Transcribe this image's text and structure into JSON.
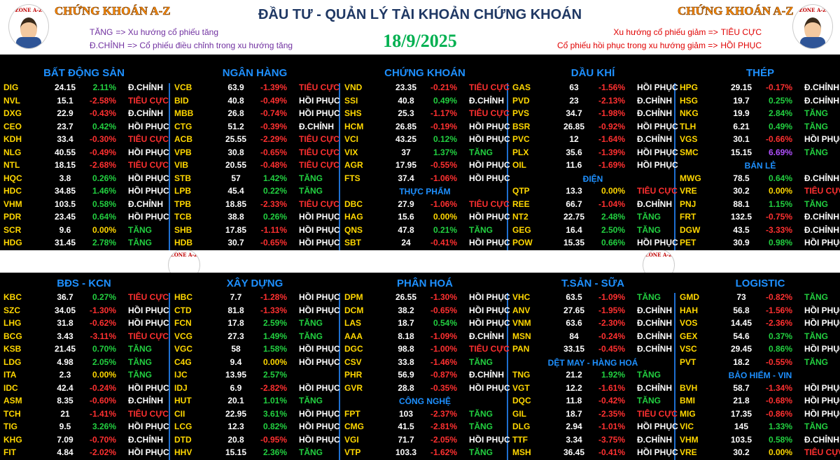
{
  "header": {
    "brand_left": "CHỨNG KHOÁN A-Z",
    "brand_right": "CHỨNG KHOÁN A-Z",
    "title": "ĐẦU TƯ - QUẢN LÝ TÀI KHOẢN CHỨNG KHOÁN",
    "date": "18/9/2025",
    "logo_text": "ZONE A-Z",
    "legend_left": [
      {
        "key": "TĂNG",
        "text": "=> Xu hướng cổ phiếu tăng"
      },
      {
        "key": "Đ.CHỈNH",
        "text": "=> Cổ phiếu điều chỉnh trong xu hướng tăng"
      }
    ],
    "legend_right": [
      {
        "text": "Xu hướng cổ phiếu giảm =>",
        "key": "TIÊU CỰC"
      },
      {
        "text": "Cổ phiếu hồi phục trong xu hướng giảm =>",
        "key": "HỒI PHỤC"
      }
    ]
  },
  "blocks": [
    {
      "columns": [
        [
          {
            "title": "BẤT ĐỘNG SẢN",
            "rows": [
              [
                "DIG",
                "24.15",
                "2.11%",
                "Đ.CHỈNH"
              ],
              [
                "NVL",
                "15.1",
                "-2.58%",
                "TIÊU CỰC"
              ],
              [
                "DXG",
                "22.9",
                "-0.43%",
                "Đ.CHỈNH"
              ],
              [
                "CEO",
                "23.7",
                "0.42%",
                "HỒI PHỤC"
              ],
              [
                "KDH",
                "33.4",
                "-0.30%",
                "TIÊU CỰC"
              ],
              [
                "NLG",
                "40.55",
                "-0.49%",
                "HỒI PHỤC"
              ],
              [
                "NTL",
                "18.15",
                "-2.68%",
                "TIÊU CỰC"
              ],
              [
                "HQC",
                "3.8",
                "0.26%",
                "HỒI PHỤC"
              ],
              [
                "HDC",
                "34.85",
                "1.46%",
                "HỒI PHỤC"
              ],
              [
                "VHM",
                "103.5",
                "0.58%",
                "Đ.CHỈNH"
              ],
              [
                "PDR",
                "23.45",
                "0.64%",
                "HỒI PHỤC"
              ],
              [
                "SCR",
                "9.6",
                "0.00%",
                "TĂNG"
              ],
              [
                "HDG",
                "31.45",
                "2.78%",
                "TĂNG"
              ]
            ]
          }
        ],
        [
          {
            "title": "NGÂN HÀNG",
            "rows": [
              [
                "VCB",
                "63.9",
                "-1.39%",
                "TIÊU CỰC"
              ],
              [
                "BID",
                "40.8",
                "-0.49%",
                "HỒI PHỤC"
              ],
              [
                "MBB",
                "26.8",
                "-0.74%",
                "HỒI PHỤC"
              ],
              [
                "CTG",
                "51.2",
                "-0.39%",
                "Đ.CHỈNH"
              ],
              [
                "ACB",
                "25.55",
                "-2.29%",
                "TIÊU CỰC"
              ],
              [
                "VPB",
                "30.8",
                "-0.65%",
                "TIÊU CỰC"
              ],
              [
                "VIB",
                "20.55",
                "-0.48%",
                "TIÊU CỰC"
              ],
              [
                "STB",
                "57",
                "1.42%",
                "TĂNG"
              ],
              [
                "LPB",
                "45.4",
                "0.22%",
                "TĂNG"
              ],
              [
                "TPB",
                "18.85",
                "-2.33%",
                "TIÊU CỰC"
              ],
              [
                "TCB",
                "38.8",
                "0.26%",
                "HỒI PHỤC"
              ],
              [
                "SHB",
                "17.85",
                "-1.11%",
                "HỒI PHỤC"
              ],
              [
                "HDB",
                "30.7",
                "-0.65%",
                "HỒI PHỤC"
              ]
            ]
          }
        ],
        [
          {
            "title": "CHỨNG KHOÁN",
            "rows": [
              [
                "VND",
                "23.35",
                "-0.21%",
                "TIÊU CỰC"
              ],
              [
                "SSI",
                "40.8",
                "0.49%",
                "Đ.CHỈNH"
              ],
              [
                "SHS",
                "25.3",
                "-1.17%",
                "TIÊU CỰC"
              ],
              [
                "HCM",
                "26.85",
                "-0.19%",
                "HỒI PHỤC"
              ],
              [
                "VCI",
                "43.25",
                "0.12%",
                "HỒI PHỤC"
              ],
              [
                "VIX",
                "37",
                "1.37%",
                "TĂNG"
              ],
              [
                "AGR",
                "17.95",
                "-0.55%",
                "HỒI PHỤC"
              ],
              [
                "FTS",
                "37.4",
                "-1.06%",
                "HỒI PHỤC"
              ]
            ]
          },
          {
            "title": "THỰC PHẨM",
            "rows": [
              [
                "DBC",
                "27.9",
                "-1.06%",
                "TIÊU CỰC"
              ],
              [
                "HAG",
                "15.6",
                "0.00%",
                "HỒI PHỤC"
              ],
              [
                "QNS",
                "47.8",
                "0.21%",
                "TĂNG"
              ],
              [
                "SBT",
                "24",
                "-0.41%",
                "HỒI PHỤC"
              ]
            ]
          }
        ],
        [
          {
            "title": "DẦU KHÍ",
            "rows": [
              [
                "GAS",
                "63",
                "-1.56%",
                "HỒI PHỤC"
              ],
              [
                "PVD",
                "23",
                "-2.13%",
                "Đ.CHỈNH"
              ],
              [
                "PVS",
                "34.7",
                "-1.98%",
                "Đ.CHỈNH"
              ],
              [
                "BSR",
                "26.85",
                "-0.92%",
                "HỒI PHỤC"
              ],
              [
                "PVC",
                "12",
                "-1.64%",
                "Đ.CHỈNH"
              ],
              [
                "PLX",
                "35.6",
                "-1.39%",
                "HỒI PHỤC"
              ],
              [
                "OIL",
                "11.6",
                "-1.69%",
                "HỒI PHỤC"
              ]
            ]
          },
          {
            "title": "ĐIỆN",
            "rows": [
              [
                "QTP",
                "13.3",
                "0.00%",
                "TIÊU CỰC"
              ],
              [
                "REE",
                "66.7",
                "-1.04%",
                "Đ.CHỈNH"
              ],
              [
                "NT2",
                "22.75",
                "2.48%",
                "TĂNG"
              ],
              [
                "GEG",
                "16.4",
                "2.50%",
                "TĂNG"
              ],
              [
                "POW",
                "15.35",
                "0.66%",
                "HỒI PHỤC"
              ]
            ]
          }
        ],
        [
          {
            "title": "THÉP",
            "rows": [
              [
                "HPG",
                "29.15",
                "-0.17%",
                "Đ.CHỈNH"
              ],
              [
                "HSG",
                "19.7",
                "0.25%",
                "Đ.CHỈNH"
              ],
              [
                "NKG",
                "19.9",
                "2.84%",
                "TĂNG"
              ],
              [
                "TLH",
                "6.21",
                "0.49%",
                "TĂNG"
              ],
              [
                "VGS",
                "30.1",
                "-0.66%",
                "HỒI PHỤC"
              ],
              [
                "SMC",
                "15.15",
                "6.69%",
                "TĂNG"
              ]
            ]
          },
          {
            "title": "BÁN LẺ",
            "rows": [
              [
                "MWG",
                "78.5",
                "0.64%",
                "Đ.CHỈNH"
              ],
              [
                "VRE",
                "30.2",
                "0.00%",
                "TIÊU CỰC"
              ],
              [
                "PNJ",
                "88.1",
                "1.15%",
                "TĂNG"
              ],
              [
                "FRT",
                "132.5",
                "-0.75%",
                "Đ.CHỈNH"
              ],
              [
                "DGW",
                "43.5",
                "-3.33%",
                "Đ.CHỈNH"
              ],
              [
                "PET",
                "30.9",
                "0.98%",
                "HỒI PHỤC"
              ]
            ]
          }
        ]
      ]
    },
    {
      "columns": [
        [
          {
            "title": "BĐS - KCN",
            "rows": [
              [
                "KBC",
                "36.7",
                "0.27%",
                "TIÊU CỰC"
              ],
              [
                "SZC",
                "34.05",
                "-1.30%",
                "HỒI PHỤC"
              ],
              [
                "LHG",
                "31.8",
                "-0.62%",
                "HỒI PHỤC"
              ],
              [
                "BCG",
                "3.43",
                "-3.11%",
                "TIÊU CỰC"
              ],
              [
                "KSB",
                "21.45",
                "0.70%",
                "TĂNG"
              ],
              [
                "LDG",
                "4.98",
                "2.05%",
                "TĂNG"
              ],
              [
                "ITA",
                "2.3",
                "0.00%",
                "TĂNG"
              ],
              [
                "IDC",
                "42.4",
                "-0.24%",
                "HỒI PHỤC"
              ],
              [
                "ASM",
                "8.35",
                "-0.60%",
                "Đ.CHỈNH"
              ],
              [
                "TCH",
                "21",
                "-1.41%",
                "TIÊU CỰC"
              ],
              [
                "TIG",
                "9.5",
                "3.26%",
                "HỒI PHỤC"
              ],
              [
                "KHG",
                "7.09",
                "-0.70%",
                "Đ.CHỈNH"
              ],
              [
                "FIT",
                "4.84",
                "-2.02%",
                "HỒI PHỤC"
              ]
            ]
          }
        ],
        [
          {
            "title": "XÂY DỰNG",
            "rows": [
              [
                "HBC",
                "7.7",
                "-1.28%",
                "HỒI PHỤC"
              ],
              [
                "CTD",
                "81.8",
                "-1.33%",
                "HỒI PHỤC"
              ],
              [
                "FCN",
                "17.8",
                "2.59%",
                "TĂNG"
              ],
              [
                "VCG",
                "27.3",
                "1.49%",
                "TĂNG"
              ],
              [
                "VGC",
                "58",
                "1.58%",
                "HỒI PHỤC"
              ],
              [
                "C4G",
                "9.4",
                "0.00%",
                "HỒI PHỤC"
              ],
              [
                "IJC",
                "13.95",
                "2.57%"
              ],
              [
                "IDJ",
                "6.9",
                "-2.82%",
                "HỒI PHỤC"
              ],
              [
                "HUT",
                "20.1",
                "1.01%",
                "TĂNG"
              ],
              [
                "CII",
                "22.95",
                "3.61%",
                "HỒI PHỤC"
              ],
              [
                "LCG",
                "12.3",
                "0.82%",
                "HỒI PHỤC"
              ],
              [
                "DTD",
                "20.8",
                "-0.95%",
                "HỒI PHỤC"
              ],
              [
                "HHV",
                "15.15",
                "2.36%",
                "TĂNG"
              ]
            ]
          }
        ],
        [
          {
            "title": "PHÂN HOÁ",
            "rows": [
              [
                "DPM",
                "26.55",
                "-1.30%",
                "HỒI PHỤC"
              ],
              [
                "DCM",
                "38.2",
                "-0.65%",
                "HỒI PHỤC"
              ],
              [
                "LAS",
                "18.7",
                "0.54%",
                "HỒI PHỤC"
              ],
              [
                "AAA",
                "8.18",
                "-1.09%",
                "Đ.CHỈNH"
              ],
              [
                "DGC",
                "98.8",
                "-1.00%",
                "TIÊU CỰC"
              ],
              [
                "CSV",
                "33.8",
                "-1.46%",
                "TĂNG"
              ],
              [
                "PHR",
                "56.9",
                "-0.87%",
                "Đ.CHỈNH"
              ],
              [
                "GVR",
                "28.8",
                "-0.35%",
                "HỒI PHỤC"
              ]
            ]
          },
          {
            "title": "CÔNG NGHỆ",
            "rows": [
              [
                "FPT",
                "103",
                "-2.37%",
                "TĂNG"
              ],
              [
                "CMG",
                "41.5",
                "-2.81%",
                "TĂNG"
              ],
              [
                "VGI",
                "71.7",
                "-2.05%",
                "HỒI PHỤC"
              ],
              [
                "VTP",
                "103.3",
                "-1.62%",
                "TĂNG"
              ]
            ]
          }
        ],
        [
          {
            "title": "T.SẢN - SỮA",
            "rows": [
              [
                "VHC",
                "63.5",
                "-1.09%",
                "TĂNG"
              ],
              [
                "ANV",
                "27.65",
                "-1.95%",
                "Đ.CHỈNH"
              ],
              [
                "VNM",
                "63.6",
                "-2.30%",
                "Đ.CHỈNH"
              ],
              [
                "MSN",
                "84",
                "-0.24%",
                "Đ.CHỈNH"
              ],
              [
                "PAN",
                "33.15",
                "-0.45%",
                "Đ.CHỈNH"
              ]
            ]
          },
          {
            "title": "DỆT MAY - HÀNG HOÁ",
            "rows": [
              [
                "TNG",
                "21.2",
                "1.92%",
                "TĂNG"
              ],
              [
                "VGT",
                "12.2",
                "-1.61%",
                "Đ.CHỈNH"
              ],
              [
                "DQC",
                "11.8",
                "-0.42%",
                "TĂNG"
              ],
              [
                "GIL",
                "18.7",
                "-2.35%",
                "TIÊU CỰC"
              ],
              [
                "DLG",
                "2.94",
                "-1.01%",
                "HỒI PHỤC"
              ],
              [
                "TTF",
                "3.34",
                "-3.75%",
                "Đ.CHỈNH"
              ],
              [
                "MSH",
                "36.45",
                "-0.41%",
                "HỒI PHỤC"
              ]
            ]
          }
        ],
        [
          {
            "title": "LOGISTIC",
            "rows": [
              [
                "GMD",
                "73",
                "-0.82%",
                "TĂNG"
              ],
              [
                "HAH",
                "56.8",
                "-1.56%",
                "HỒI PHỤC"
              ],
              [
                "VOS",
                "14.45",
                "-2.36%",
                "HỒI PHỤC"
              ],
              [
                "GEX",
                "54.6",
                "0.37%",
                "TĂNG"
              ],
              [
                "VSC",
                "29.45",
                "0.86%",
                "HỒI PHỤC"
              ],
              [
                "PVT",
                "18.2",
                "-0.55%",
                "TĂNG"
              ]
            ]
          },
          {
            "title": "BẢO HIỂM - VIN",
            "rows": [
              [
                "BVH",
                "58.7",
                "-1.34%",
                "HỒI PHỤC"
              ],
              [
                "BMI",
                "21.8",
                "-0.68%",
                "HỒI PHỤC"
              ],
              [
                "MIG",
                "17.35",
                "-0.86%",
                "HỒI PHỤC"
              ],
              [
                "VIC",
                "145",
                "1.33%",
                "TĂNG"
              ],
              [
                "VHM",
                "103.5",
                "0.58%",
                "Đ.CHỈNH"
              ],
              [
                "VRE",
                "30.2",
                "0.00%",
                "TIÊU CỰC"
              ]
            ]
          }
        ]
      ]
    }
  ]
}
